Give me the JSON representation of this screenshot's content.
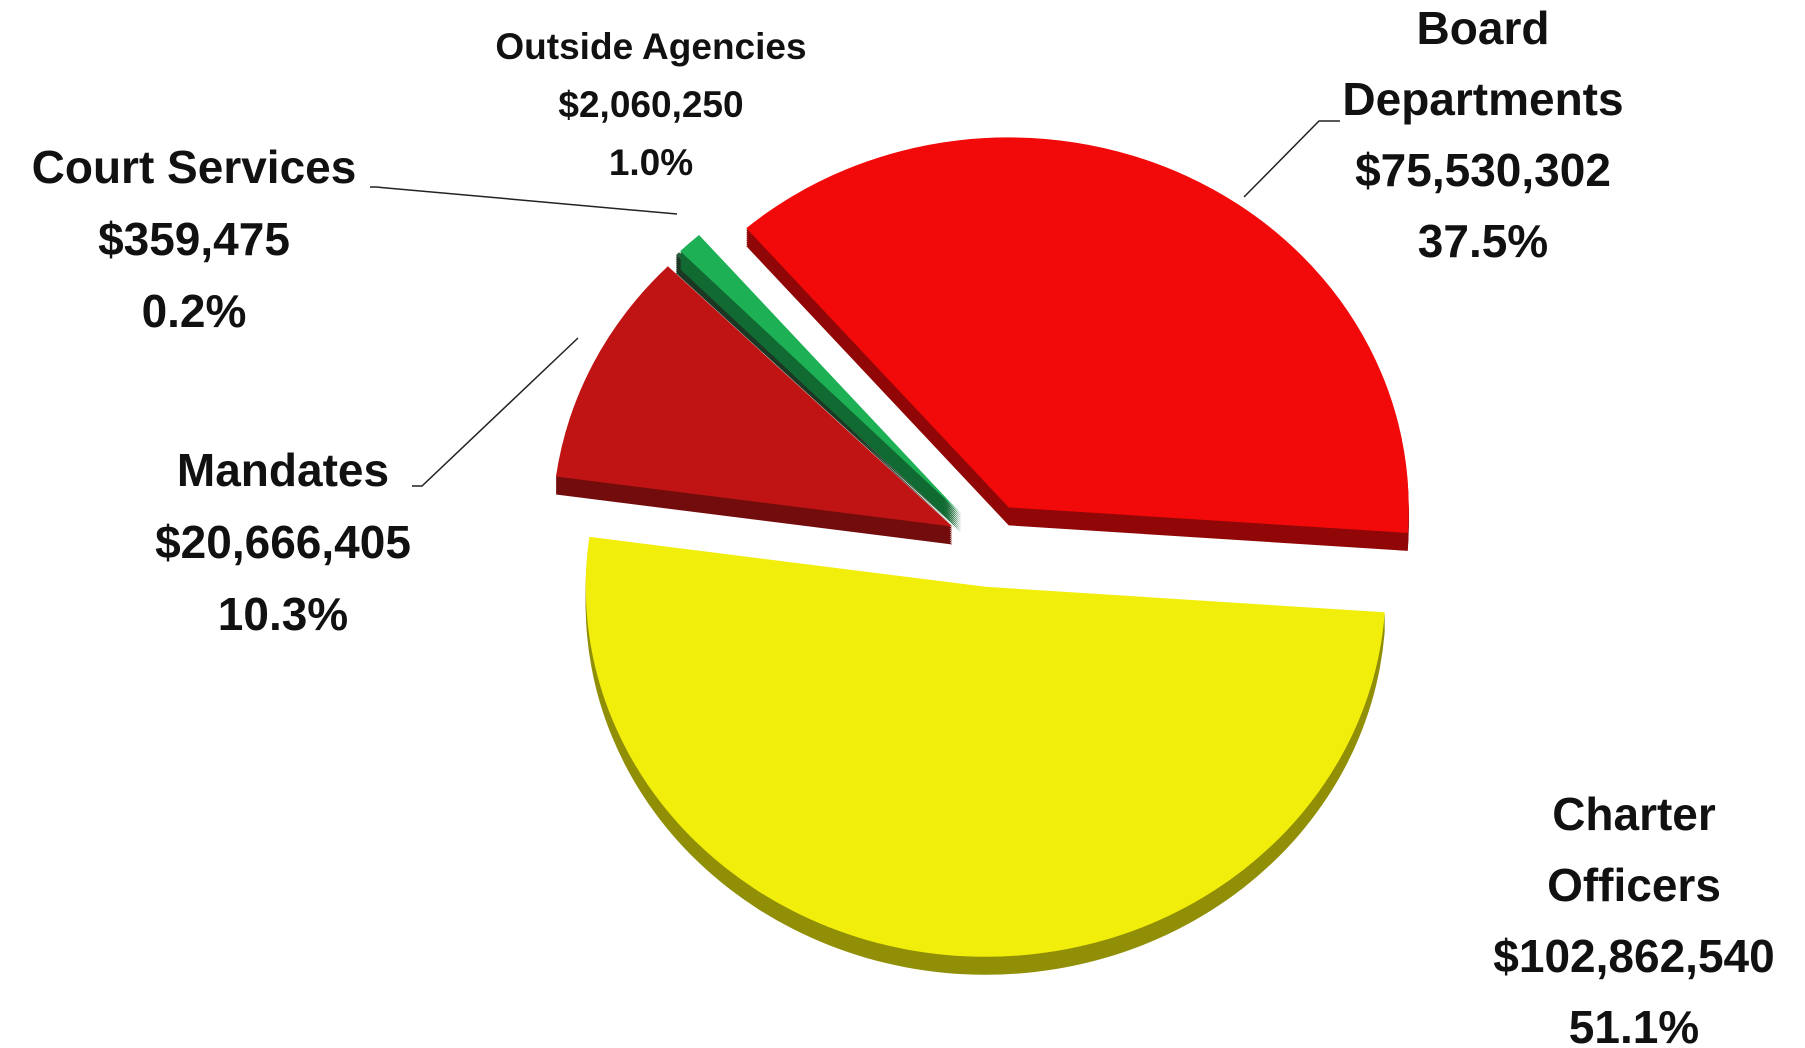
{
  "chart_data": {
    "type": "pie",
    "categories": [
      [
        "Board",
        "Departments"
      ],
      [
        "Charter",
        "Officers"
      ],
      [
        "Mandates"
      ],
      [
        "Court Services"
      ],
      [
        "Outside Agencies"
      ]
    ],
    "values": [
      75530302,
      102862540,
      20666405,
      359475,
      2060250
    ],
    "value_labels": [
      "$75,530,302",
      "$102,862,540",
      "$20,666,405",
      "$359,475",
      "$2,060,250"
    ],
    "percentages": [
      37.5,
      51.1,
      10.3,
      0.2,
      1.0
    ],
    "percentage_labels": [
      "37.5%",
      "51.1%",
      "10.3%",
      "0.2%",
      "1.0%"
    ],
    "colors": [
      "#f20a0a",
      "#f2ee0c",
      "#c01414",
      "#2e5e3e",
      "#1db054"
    ]
  }
}
